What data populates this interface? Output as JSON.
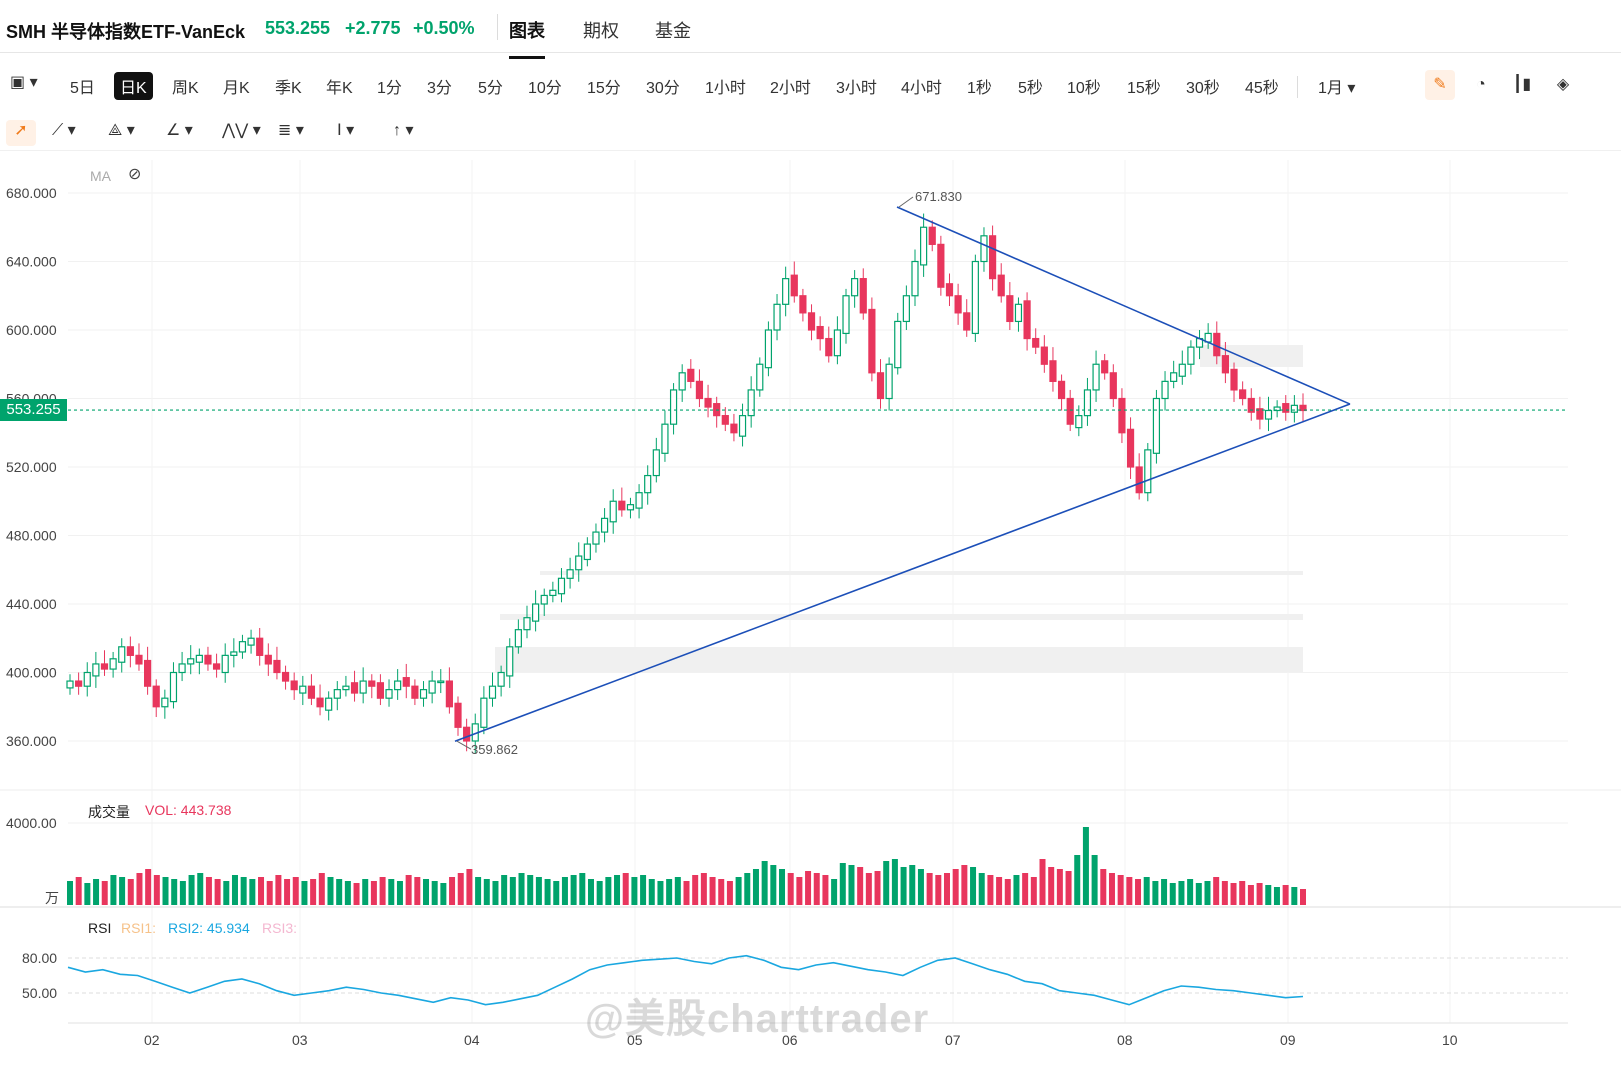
{
  "header": {
    "symbol": "SMH 半导体指数ETF-VanEck",
    "price": "553.255",
    "change": "+2.775",
    "change_pct": "+0.50%",
    "tabs": [
      "图表",
      "期权",
      "基金"
    ],
    "active_tab": "图表"
  },
  "intervals": {
    "items": [
      "5日",
      "日K",
      "周K",
      "月K",
      "季K",
      "年K",
      "1分",
      "3分",
      "5分",
      "10分",
      "15分",
      "30分",
      "1小时",
      "2小时",
      "3小时",
      "4小时",
      "1秒",
      "5秒",
      "10秒",
      "15秒",
      "30秒",
      "45秒"
    ],
    "active": "日K",
    "range_label": "1月"
  },
  "indicators": {
    "ma_label": "MA",
    "volume_label": "成交量",
    "vol_value": "VOL: 443.738",
    "vol_unit": "万",
    "rsi_label": "RSI",
    "rsi1": "RSI1:",
    "rsi2": "RSI2: 45.934",
    "rsi3": "RSI3:"
  },
  "price_tag": "553.255",
  "watermark": "@美股charttrader",
  "colors": {
    "up": "#00a36c",
    "down": "#e8365d",
    "trend": "#1c4fb8",
    "rsi": "#1aa7e0"
  },
  "chart_data": {
    "type": "candlestick",
    "price_axis": [
      "680.000",
      "640.000",
      "600.000",
      "560.000",
      "520.000",
      "480.000",
      "440.000",
      "400.000",
      "360.000"
    ],
    "price_range": [
      350,
      690
    ],
    "volume_axis": [
      "4000.00"
    ],
    "rsi_axis": [
      "80.00",
      "50.00"
    ],
    "x_ticks": [
      "02",
      "03",
      "04",
      "05",
      "06",
      "07",
      "08",
      "09",
      "10"
    ],
    "annotations": [
      {
        "label": "671.830",
        "type": "high"
      },
      {
        "label": "359.862",
        "type": "low"
      }
    ],
    "trendlines": [
      {
        "from": [
          359.862,
          "2024-04-19"
        ],
        "to": [
          553,
          "2024-09-13"
        ]
      },
      {
        "from": [
          671.83,
          "2024-07-10"
        ],
        "to": [
          553,
          "2024-09-13"
        ]
      }
    ],
    "current_price": 553.255,
    "closes": [
      395,
      392,
      400,
      405,
      402,
      408,
      415,
      410,
      405,
      392,
      380,
      385,
      400,
      405,
      408,
      410,
      405,
      402,
      410,
      412,
      418,
      420,
      410,
      405,
      400,
      395,
      390,
      392,
      385,
      380,
      385,
      390,
      392,
      388,
      395,
      392,
      385,
      390,
      395,
      392,
      385,
      390,
      395,
      395,
      380,
      368,
      360,
      370,
      385,
      392,
      400,
      415,
      425,
      432,
      440,
      445,
      448,
      455,
      460,
      468,
      475,
      482,
      490,
      500,
      495,
      498,
      505,
      515,
      530,
      545,
      565,
      575,
      570,
      560,
      555,
      550,
      545,
      540,
      550,
      565,
      580,
      600,
      615,
      630,
      620,
      610,
      600,
      595,
      585,
      600,
      620,
      630,
      610,
      575,
      560,
      580,
      605,
      620,
      640,
      660,
      650,
      625,
      620,
      610,
      600,
      640,
      655,
      630,
      620,
      605,
      615,
      595,
      590,
      580,
      570,
      560,
      545,
      550,
      565,
      580,
      575,
      560,
      540,
      520,
      505,
      530,
      560,
      570,
      575,
      580,
      590,
      595,
      598,
      585,
      575,
      565,
      560,
      552,
      548,
      553,
      555,
      552,
      556,
      553
    ],
    "rsi_series": [
      72,
      68,
      70,
      66,
      65,
      60,
      55,
      50,
      55,
      60,
      62,
      58,
      52,
      48,
      50,
      52,
      55,
      53,
      50,
      48,
      45,
      42,
      46,
      44,
      40,
      42,
      45,
      48,
      55,
      62,
      70,
      74,
      76,
      78,
      79,
      80,
      77,
      75,
      80,
      82,
      78,
      72,
      70,
      74,
      76,
      73,
      70,
      68,
      65,
      72,
      78,
      80,
      75,
      70,
      66,
      60,
      58,
      52,
      50,
      48,
      44,
      40,
      46,
      52,
      56,
      55,
      53,
      52,
      50,
      48,
      46,
      47
    ],
    "volume_series": [
      1.2,
      1.4,
      1.1,
      1.3,
      1.2,
      1.5,
      1.4,
      1.3,
      1.6,
      1.8,
      1.5,
      1.4,
      1.3,
      1.2,
      1.5,
      1.6,
      1.4,
      1.3,
      1.2,
      1.5,
      1.4,
      1.3,
      1.4,
      1.2,
      1.5,
      1.3,
      1.4,
      1.2,
      1.3,
      1.6,
      1.4,
      1.3,
      1.2,
      1.1,
      1.3,
      1.2,
      1.4,
      1.3,
      1.2,
      1.5,
      1.4,
      1.3,
      1.2,
      1.1,
      1.4,
      1.6,
      1.8,
      1.4,
      1.3,
      1.2,
      1.5,
      1.4,
      1.6,
      1.5,
      1.4,
      1.3,
      1.2,
      1.4,
      1.5,
      1.6,
      1.3,
      1.2,
      1.4,
      1.5,
      1.6,
      1.4,
      1.5,
      1.3,
      1.2,
      1.3,
      1.4,
      1.2,
      1.5,
      1.6,
      1.4,
      1.3,
      1.2,
      1.4,
      1.6,
      1.8,
      2.2,
      2.0,
      1.8,
      1.6,
      1.4,
      1.7,
      1.6,
      1.5,
      1.3,
      2.1,
      2.0,
      1.9,
      1.6,
      1.7,
      2.2,
      2.3,
      1.9,
      2.0,
      1.8,
      1.6,
      1.5,
      1.6,
      1.8,
      2.0,
      1.9,
      1.6,
      1.5,
      1.4,
      1.3,
      1.5,
      1.6,
      1.4,
      2.3,
      1.9,
      1.8,
      1.7,
      2.5,
      3.9,
      2.5,
      1.8,
      1.6,
      1.5,
      1.4,
      1.3,
      1.4,
      1.2,
      1.3,
      1.1,
      1.2,
      1.3,
      1.1,
      1.2,
      1.4,
      1.2,
      1.1,
      1.2,
      1.0,
      1.1,
      1.0,
      0.9,
      1.0,
      0.9,
      0.8
    ]
  }
}
